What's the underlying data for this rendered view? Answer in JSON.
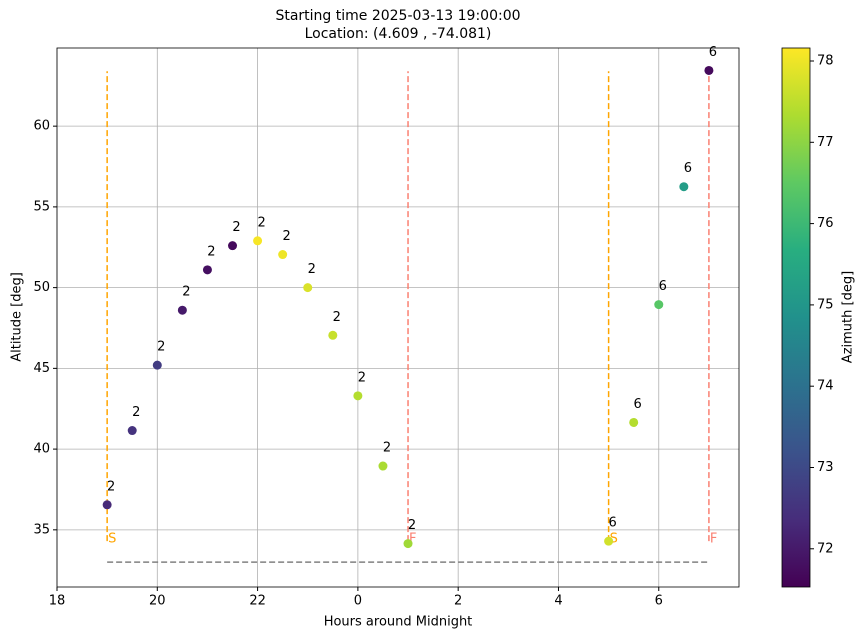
{
  "chart_data": {
    "type": "scatter",
    "title": "Starting time 2025-03-13 19:00:00",
    "subtitle": "Location: (4.609 , -74.081)",
    "x_label": "Hours around Midnight",
    "y_label": "Altitude [deg]",
    "xlim": [
      -6,
      7.6
    ],
    "ylim": [
      31.46,
      64.84
    ],
    "xticks": [
      {
        "value": -6,
        "label": "18"
      },
      {
        "value": -4,
        "label": "20"
      },
      {
        "value": -2,
        "label": "22"
      },
      0,
      2,
      4,
      6
    ],
    "yticks": [
      35,
      40,
      45,
      50,
      55,
      60
    ],
    "grid": true,
    "colormap": "viridis",
    "series": [
      {
        "x": [
          -5,
          -4.5,
          -4,
          -3.5,
          -3,
          -2.5,
          -2,
          -1.5,
          -1,
          -0.5,
          0,
          0.5,
          1,
          5,
          5.5,
          6,
          6.5,
          7
        ],
        "values": [
          36.55,
          41.15,
          45.2,
          48.6,
          51.1,
          52.6,
          52.9,
          52.05,
          50.0,
          47.05,
          43.3,
          38.95,
          34.15,
          34.3,
          41.65,
          48.95,
          56.25,
          63.45
        ],
        "color_values": [
          72.3,
          72.5,
          72.7,
          72.0,
          71.8,
          71.7,
          78.1,
          78.0,
          77.8,
          77.6,
          77.4,
          77.3,
          77.2,
          77.7,
          77.4,
          76.4,
          75.2,
          71.7
        ],
        "labels": [
          "2",
          "2",
          "2",
          "2",
          "2",
          "2",
          "2",
          "2",
          "2",
          "2",
          "2",
          "2",
          "2",
          "6",
          "6",
          "6",
          "6",
          "6"
        ]
      }
    ],
    "vlines": [
      {
        "x": -5,
        "ymin": 34.3,
        "ymax": 63.4,
        "color": "#ffa500",
        "label": "S"
      },
      {
        "x": 1,
        "ymin": 34.3,
        "ymax": 63.4,
        "color": "#fa8072",
        "label": "F"
      },
      {
        "x": 5,
        "ymin": 34.3,
        "ymax": 63.4,
        "color": "#ffa500",
        "label": "S"
      },
      {
        "x": 7,
        "ymin": 34.3,
        "ymax": 63.4,
        "color": "#fa8072",
        "label": "F"
      }
    ],
    "hline": {
      "y": 33.0,
      "xmin": -5,
      "xmax": 7,
      "color": "#808080"
    },
    "colorbar": {
      "label": "Azimuth [deg]",
      "lim": [
        71.53,
        78.16
      ],
      "ticks": [
        72,
        73,
        74,
        75,
        76,
        77,
        78
      ]
    }
  }
}
